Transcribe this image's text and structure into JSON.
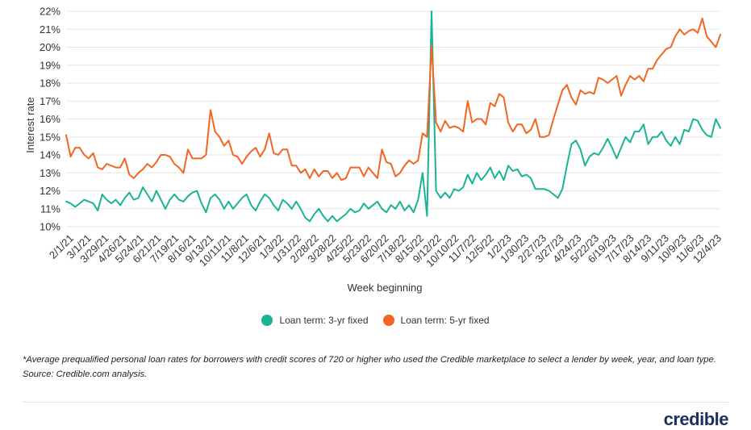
{
  "chart_data": {
    "type": "line",
    "title": "",
    "xlabel": "Week beginning",
    "ylabel": "Interest rate",
    "ylim": [
      10,
      22
    ],
    "y_ticks": [
      "10%",
      "11%",
      "12%",
      "13%",
      "14%",
      "15%",
      "16%",
      "17%",
      "18%",
      "19%",
      "20%",
      "21%",
      "22%"
    ],
    "x_tick_labels": [
      "2/1/21",
      "3/1/21",
      "3/29/21",
      "4/26/21",
      "5/24/21",
      "6/21/21",
      "7/19/21",
      "8/16/21",
      "9/13/21",
      "10/11/21",
      "11/8/21",
      "12/6/21",
      "1/3/22",
      "1/31/22",
      "2/28/22",
      "3/28/22",
      "4/25/22",
      "5/23/22",
      "6/20/22",
      "7/18/22",
      "8/15/22",
      "9/12/22",
      "10/10/22",
      "11/7/22",
      "12/5/22",
      "1/2/23",
      "1/30/23",
      "2/27/23",
      "3/27/23",
      "4/24/23",
      "5/22/23",
      "6/19/23",
      "7/17/23",
      "8/14/23",
      "9/11/23",
      "10/9/23",
      "11/6/23",
      "12/4/23"
    ],
    "grid": "horizontal",
    "legend_position": "bottom",
    "series": [
      {
        "name": "Loan term: 3-yr fixed",
        "color": "#1ab394",
        "values": [
          11.4,
          11.3,
          11.1,
          11.3,
          11.5,
          11.4,
          11.3,
          10.9,
          11.8,
          11.5,
          11.3,
          11.5,
          11.2,
          11.6,
          11.9,
          11.5,
          11.6,
          12.2,
          11.8,
          11.4,
          12.0,
          11.5,
          11.0,
          11.5,
          11.8,
          11.5,
          11.4,
          11.7,
          11.9,
          12.0,
          11.3,
          10.8,
          11.6,
          11.8,
          11.5,
          11.0,
          11.4,
          11.0,
          11.3,
          11.6,
          11.8,
          11.2,
          10.9,
          11.4,
          11.8,
          11.6,
          11.2,
          10.9,
          11.5,
          11.3,
          11.0,
          11.4,
          11.0,
          10.5,
          10.3,
          10.7,
          11.0,
          10.6,
          10.3,
          10.6,
          10.3,
          10.5,
          10.7,
          11.0,
          10.8,
          10.9,
          11.3,
          11.0,
          11.2,
          11.4,
          11.0,
          10.8,
          11.2,
          11.0,
          11.4,
          10.9,
          11.2,
          10.8,
          11.5,
          13.0,
          10.6,
          22.0,
          12.0,
          11.6,
          11.9,
          11.6,
          12.1,
          12.0,
          12.2,
          12.9,
          12.4,
          13.0,
          12.6,
          12.9,
          13.3,
          12.7,
          13.1,
          12.6,
          13.4,
          13.1,
          13.2,
          12.8,
          12.9,
          12.7,
          12.1,
          12.1,
          12.1,
          12.0,
          11.8,
          11.6,
          12.1,
          13.4,
          14.6,
          14.8,
          14.3,
          13.4,
          13.9,
          14.1,
          14.0,
          14.4,
          14.9,
          14.4,
          13.8,
          14.4,
          15.0,
          14.7,
          15.3,
          15.3,
          15.7,
          14.6,
          15.0,
          15.0,
          15.3,
          14.8,
          14.5,
          15.0,
          14.6,
          15.4,
          15.3,
          16.0,
          15.9,
          15.4,
          15.1,
          15.0,
          16.0,
          15.5
        ]
      },
      {
        "name": "Loan term: 5-yr fixed",
        "color": "#f26522",
        "values": [
          15.1,
          13.9,
          14.4,
          14.4,
          14.0,
          13.8,
          14.1,
          13.3,
          13.2,
          13.5,
          13.4,
          13.3,
          13.3,
          13.8,
          12.9,
          12.7,
          13.0,
          13.2,
          13.5,
          13.3,
          13.6,
          14.0,
          14.0,
          13.9,
          13.5,
          13.3,
          13.0,
          14.3,
          13.8,
          13.8,
          13.8,
          14.0,
          16.5,
          15.3,
          15.0,
          14.5,
          14.8,
          14.0,
          13.9,
          13.5,
          13.9,
          14.2,
          14.4,
          13.9,
          14.3,
          15.2,
          14.1,
          14.0,
          14.3,
          14.3,
          13.4,
          13.4,
          13.0,
          13.2,
          12.7,
          13.2,
          12.8,
          13.1,
          13.1,
          12.7,
          13.0,
          12.6,
          12.7,
          13.3,
          13.3,
          13.3,
          12.8,
          13.3,
          13.0,
          12.7,
          14.3,
          13.6,
          13.5,
          12.8,
          13.0,
          13.4,
          13.7,
          13.5,
          13.7,
          15.2,
          15.0,
          20.1,
          15.8,
          15.3,
          15.9,
          15.5,
          15.6,
          15.5,
          15.3,
          17.0,
          15.8,
          16.0,
          16.0,
          15.7,
          16.9,
          16.7,
          17.4,
          17.2,
          15.8,
          15.3,
          15.7,
          15.7,
          15.2,
          15.4,
          16.0,
          15.0,
          15.0,
          15.1,
          16.0,
          16.8,
          17.6,
          17.9,
          17.2,
          16.8,
          17.6,
          17.4,
          17.5,
          17.4,
          18.3,
          18.2,
          18.0,
          18.2,
          18.4,
          17.3,
          17.9,
          18.4,
          18.2,
          18.4,
          18.1,
          18.8,
          18.8,
          19.3,
          19.6,
          19.9,
          20.0,
          20.6,
          21.0,
          20.7,
          20.9,
          21.0,
          20.8,
          21.6,
          20.6,
          20.3,
          20.0,
          20.7
        ]
      }
    ],
    "footnote": "*Average prequalified personal loan rates for borrowers with credit scores of 720 or higher who used the Credible marketplace to select a lender by week, year, and loan type. Source: Credible.com analysis.",
    "logo": "credible"
  }
}
